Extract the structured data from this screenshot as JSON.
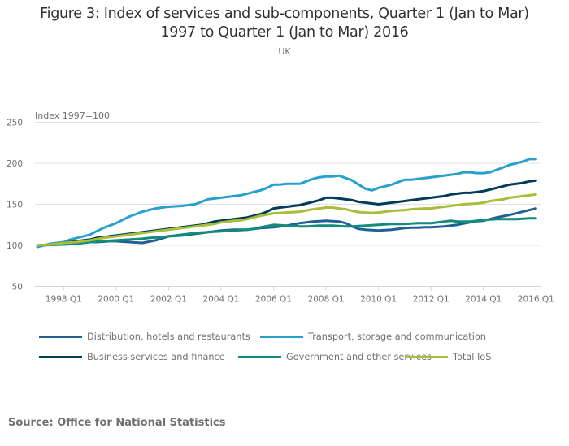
{
  "header": {
    "title_line1": "Figure 3: Index of services and sub-components, Quarter 1 (Jan to Mar)",
    "title_line2": "1997 to Quarter 1 (Jan to Mar) 2016",
    "subtitle": "UK"
  },
  "source": "Source: Office for National Statistics",
  "chart_data": {
    "type": "line",
    "title": "Figure 3: Index of services and sub-components, Quarter 1 (Jan to Mar) 1997 to Quarter 1 (Jan to Mar) 2016",
    "subtitle": "UK",
    "xlabel": "",
    "ylabel": "Index 1997=100",
    "ylim": [
      50,
      250
    ],
    "yticks": [
      50,
      100,
      150,
      200,
      250
    ],
    "xlim": [
      "1997 Q1",
      "2016 Q1"
    ],
    "xticks": [
      "1998 Q1",
      "2000 Q1",
      "2002 Q1",
      "2004 Q1",
      "2006 Q1",
      "2008 Q1",
      "2010 Q1",
      "2012 Q1",
      "2014 Q1",
      "2016 Q1"
    ],
    "grid": true,
    "legend_position": "bottom",
    "x_start": "1997 Q1",
    "x_frequency": "quarterly",
    "series": [
      {
        "name": "Distribution, hotels and restaurants",
        "color": "#206095",
        "values": [
          100,
          100.5,
          101,
          101.5,
          102,
          102.5,
          103,
          103.5,
          104,
          104,
          104.5,
          105,
          105,
          104.5,
          104,
          103.5,
          103,
          104.5,
          106,
          108.5,
          111,
          111.5,
          112,
          113,
          114,
          115,
          116,
          117,
          118,
          118.5,
          119,
          119,
          119,
          120,
          121,
          121.5,
          122,
          123,
          124,
          125.5,
          127,
          128,
          129,
          129.5,
          130,
          129.5,
          129,
          127,
          123,
          120,
          119,
          118.5,
          118,
          118.5,
          119,
          120,
          121,
          121.5,
          121.5,
          122,
          122,
          122.5,
          123,
          124,
          125,
          126.5,
          128,
          129.5,
          130,
          132,
          134,
          135.5,
          137,
          139,
          141,
          143,
          145
        ]
      },
      {
        "name": "Transport, storage and communication",
        "color": "#27a0cc",
        "values": [
          98,
          100,
          102,
          103,
          104,
          107,
          109,
          111,
          113,
          117,
          121,
          124,
          127,
          131,
          135,
          138,
          141,
          143,
          145,
          146,
          147,
          147.5,
          148,
          149,
          150,
          153,
          156,
          157,
          158,
          159,
          160,
          161,
          163,
          165,
          167,
          170,
          174,
          174,
          175,
          175,
          175,
          178,
          181,
          183,
          184,
          184,
          185,
          182,
          179,
          174,
          169,
          167,
          170,
          172,
          174,
          177,
          180,
          180,
          181,
          182,
          183,
          184,
          185,
          186,
          187,
          189,
          189,
          188,
          188,
          189,
          192,
          195,
          198,
          200,
          202,
          205,
          205
        ]
      },
      {
        "name": "Business services and finance",
        "color": "#003c57",
        "values": [
          100,
          100.5,
          101,
          102,
          103,
          104,
          105,
          106,
          107,
          109,
          110,
          111,
          112,
          113,
          114,
          115,
          116,
          117,
          118,
          119,
          120,
          121,
          122,
          123,
          124,
          125,
          127,
          129,
          130,
          131,
          132,
          133,
          134,
          136,
          138,
          141,
          145,
          146,
          147,
          148,
          149,
          151,
          153,
          155,
          158,
          158,
          157,
          156,
          155,
          153,
          152,
          151,
          150,
          151,
          152,
          153,
          154,
          155,
          156,
          157,
          158,
          159,
          160,
          162,
          163,
          164,
          164,
          165,
          166,
          168,
          170,
          172,
          174,
          175,
          176,
          178,
          179
        ]
      },
      {
        "name": "Government and other services",
        "color": "#118c7b",
        "values": [
          100,
          100.2,
          100.5,
          100.8,
          101,
          101.5,
          102,
          103,
          104,
          104.5,
          105,
          105.5,
          106,
          106.5,
          107,
          107.5,
          108,
          109,
          109.5,
          110,
          111,
          112,
          113,
          114,
          115,
          115.5,
          116,
          116.5,
          117,
          117.5,
          118,
          118.5,
          119,
          120,
          122,
          123.5,
          125,
          124.5,
          124,
          123.5,
          123,
          123,
          123.5,
          124,
          124,
          124,
          123.5,
          123,
          123,
          123.5,
          124,
          124.5,
          125,
          125.5,
          126,
          126,
          126,
          126.5,
          127,
          127,
          127,
          128,
          129,
          130,
          129,
          129,
          129,
          130,
          131,
          131.5,
          132,
          132,
          132,
          132,
          132.5,
          133,
          133
        ]
      },
      {
        "name": "Total IoS",
        "color": "#a8bd3a",
        "values": [
          100,
          100.5,
          101,
          102,
          103,
          103.5,
          104,
          105,
          106,
          107.5,
          109,
          110,
          111,
          112,
          113,
          114,
          115,
          116,
          117,
          118,
          119,
          120,
          121,
          122,
          123,
          124,
          125,
          126,
          128,
          129,
          130,
          130.5,
          132,
          134,
          136,
          137.5,
          139,
          139.5,
          140,
          140.5,
          141,
          142.5,
          144,
          145,
          146,
          146,
          145,
          144,
          142,
          140.5,
          140,
          139.5,
          140,
          141,
          142,
          142.5,
          143,
          144,
          144.5,
          145,
          145,
          146,
          147,
          148,
          149,
          150,
          150.5,
          151,
          152,
          154,
          155,
          156,
          158,
          159,
          160,
          161,
          162
        ]
      }
    ]
  }
}
